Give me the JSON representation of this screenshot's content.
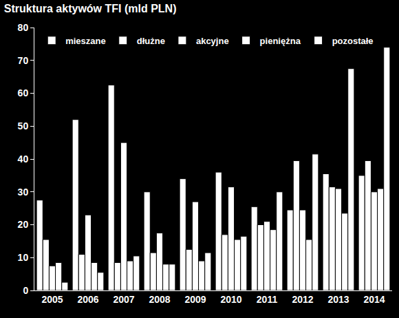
{
  "chart_data": {
    "type": "bar",
    "title": "Struktura aktywów TFI (mld PLN)",
    "categories": [
      "2005",
      "2006",
      "2007",
      "2008",
      "2009",
      "2010",
      "2011",
      "2012",
      "2013",
      "2014"
    ],
    "series": [
      {
        "name": "mieszane",
        "color": "#ffffff",
        "values": [
          27.5,
          52,
          62.5,
          30,
          34,
          36,
          25.5,
          24.5,
          35.5,
          35
        ]
      },
      {
        "name": "dłużne",
        "color": "#ffffff",
        "values": [
          15.5,
          11,
          8.5,
          11.5,
          12.5,
          17,
          20,
          39.5,
          31.5,
          39.5
        ]
      },
      {
        "name": "akcyjne",
        "color": "#ffffff",
        "values": [
          7.5,
          23,
          45,
          17.5,
          27,
          31.5,
          21,
          24.5,
          31,
          30
        ]
      },
      {
        "name": "pieniężna",
        "color": "#ffffff",
        "values": [
          8.5,
          8.5,
          9,
          8,
          9,
          15.5,
          18.5,
          15.5,
          23.5,
          31
        ]
      },
      {
        "name": "pozostałe",
        "color": "#ffffff",
        "values": [
          2.5,
          5.5,
          10.5,
          8,
          11.5,
          16.5,
          30,
          41.5,
          67.5,
          74
        ]
      }
    ],
    "ylim": [
      0,
      80
    ],
    "yticks": [
      0,
      10,
      20,
      30,
      40,
      50,
      60,
      70,
      80
    ],
    "grid": false,
    "legend": "upper left"
  }
}
